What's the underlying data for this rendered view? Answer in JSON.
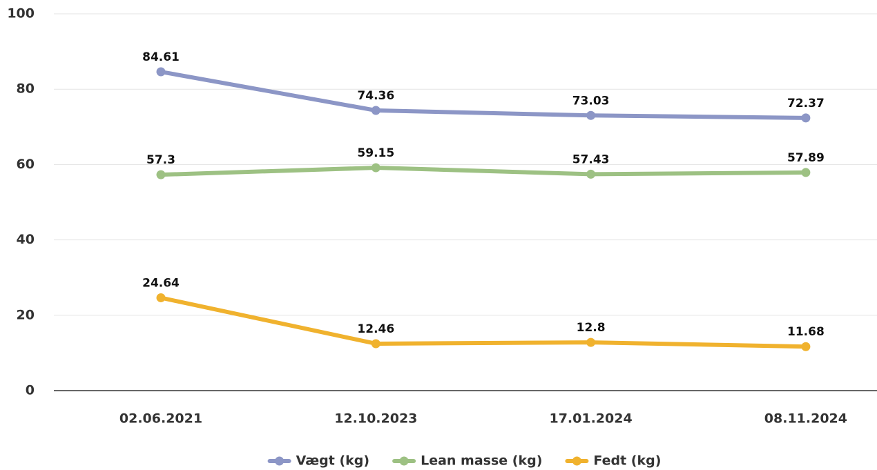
{
  "chart_data": {
    "type": "line",
    "categories": [
      "02.06.2021",
      "12.10.2023",
      "17.01.2024",
      "08.11.2024"
    ],
    "series": [
      {
        "name": "Vægt (kg)",
        "color": "#8c96c6",
        "values": [
          84.61,
          74.36,
          73.03,
          72.37
        ]
      },
      {
        "name": "Lean masse (kg)",
        "color": "#9dc183",
        "values": [
          57.3,
          59.15,
          57.43,
          57.89
        ]
      },
      {
        "name": "Fedt (kg)",
        "color": "#f0b22e",
        "values": [
          24.64,
          12.46,
          12.8,
          11.68
        ]
      }
    ],
    "ylim": [
      0,
      100
    ],
    "yticks": [
      0,
      20,
      40,
      60,
      80,
      100
    ],
    "grid": true,
    "legend": "bottom"
  }
}
